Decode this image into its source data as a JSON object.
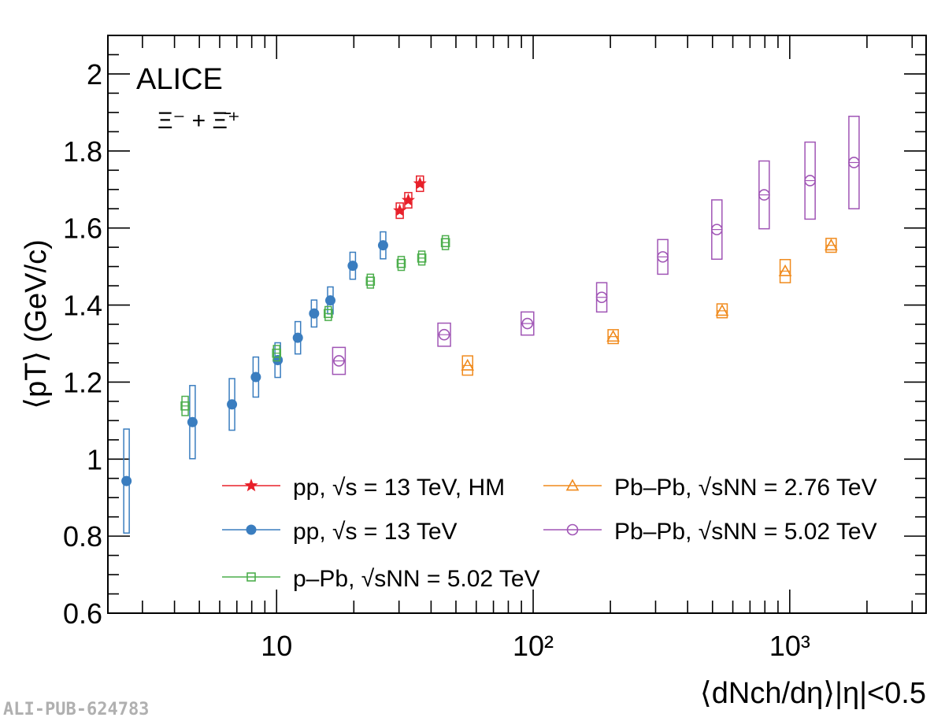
{
  "reference_label": "ALI-PUB-624783",
  "chart_data": {
    "type": "scatter",
    "title": "ALICE",
    "subtitle": "Ξ⁻ + Ξ̄⁺",
    "ylabel": "⟨pT⟩ (GeV/c)",
    "xlabel": "⟨dNch/dη⟩|η|<0.5",
    "xscale": "log",
    "xlim": [
      2.2,
      3400
    ],
    "ylim": [
      0.6,
      2.1
    ],
    "x_ticks": [
      "10",
      "10²",
      "10³"
    ],
    "y_ticks": [
      "0.6",
      "0.8",
      "1",
      "1.2",
      "1.4",
      "1.6",
      "1.8",
      "2"
    ],
    "legend_placement": "bottom-right, two columns",
    "series": [
      {
        "name": "pp, √s = 13 TeV, HM",
        "color": "#e8202a",
        "marker": "star",
        "points": [
          {
            "x": 30.2,
            "y": 1.645,
            "syst": 0.02
          },
          {
            "x": 32.6,
            "y": 1.672,
            "syst": 0.02
          },
          {
            "x": 36.2,
            "y": 1.715,
            "syst": 0.02
          }
        ]
      },
      {
        "name": "pp, √s = 13 TeV",
        "color": "#3a7dbf",
        "marker": "filled-circle",
        "points": [
          {
            "x": 2.6,
            "y": 0.943,
            "syst": 0.135
          },
          {
            "x": 4.7,
            "y": 1.096,
            "syst": 0.095
          },
          {
            "x": 6.7,
            "y": 1.142,
            "syst": 0.067
          },
          {
            "x": 8.3,
            "y": 1.213,
            "syst": 0.052
          },
          {
            "x": 10.1,
            "y": 1.257,
            "syst": 0.045
          },
          {
            "x": 12.1,
            "y": 1.315,
            "syst": 0.042
          },
          {
            "x": 14.0,
            "y": 1.378,
            "syst": 0.035
          },
          {
            "x": 16.2,
            "y": 1.412,
            "syst": 0.035
          },
          {
            "x": 19.8,
            "y": 1.502,
            "syst": 0.035
          },
          {
            "x": 26.0,
            "y": 1.555,
            "syst": 0.035
          }
        ]
      },
      {
        "name": "p–Pb, √sNN = 5.02 TeV",
        "color": "#4cae4c",
        "marker": "open-square",
        "points": [
          {
            "x": 4.4,
            "y": 1.138,
            "syst": 0.025
          },
          {
            "x": 10.0,
            "y": 1.275,
            "syst": 0.02
          },
          {
            "x": 15.9,
            "y": 1.378,
            "syst": 0.018
          },
          {
            "x": 23.2,
            "y": 1.462,
            "syst": 0.018
          },
          {
            "x": 30.6,
            "y": 1.508,
            "syst": 0.018
          },
          {
            "x": 36.8,
            "y": 1.522,
            "syst": 0.018
          },
          {
            "x": 45.5,
            "y": 1.562,
            "syst": 0.018
          }
        ]
      },
      {
        "name": "Pb–Pb, √sNN = 2.76 TeV",
        "color": "#f08a1c",
        "marker": "open-triangle",
        "points": [
          {
            "x": 55.5,
            "y": 1.243,
            "syst": 0.025
          },
          {
            "x": 205,
            "y": 1.318,
            "syst": 0.018
          },
          {
            "x": 545,
            "y": 1.385,
            "syst": 0.018
          },
          {
            "x": 960,
            "y": 1.488,
            "syst": 0.03
          },
          {
            "x": 1450,
            "y": 1.555,
            "syst": 0.018
          }
        ]
      },
      {
        "name": "Pb–Pb, √sNN = 5.02 TeV",
        "color": "#a055b5",
        "marker": "open-circle",
        "points": [
          {
            "x": 17.5,
            "y": 1.255,
            "syst": 0.035
          },
          {
            "x": 45.0,
            "y": 1.323,
            "syst": 0.03
          },
          {
            "x": 95,
            "y": 1.352,
            "syst": 0.03
          },
          {
            "x": 185,
            "y": 1.42,
            "syst": 0.038
          },
          {
            "x": 320,
            "y": 1.525,
            "syst": 0.045
          },
          {
            "x": 520,
            "y": 1.596,
            "syst": 0.077
          },
          {
            "x": 795,
            "y": 1.686,
            "syst": 0.088
          },
          {
            "x": 1200,
            "y": 1.723,
            "syst": 0.1
          },
          {
            "x": 1780,
            "y": 1.77,
            "syst": 0.12
          }
        ]
      }
    ]
  }
}
